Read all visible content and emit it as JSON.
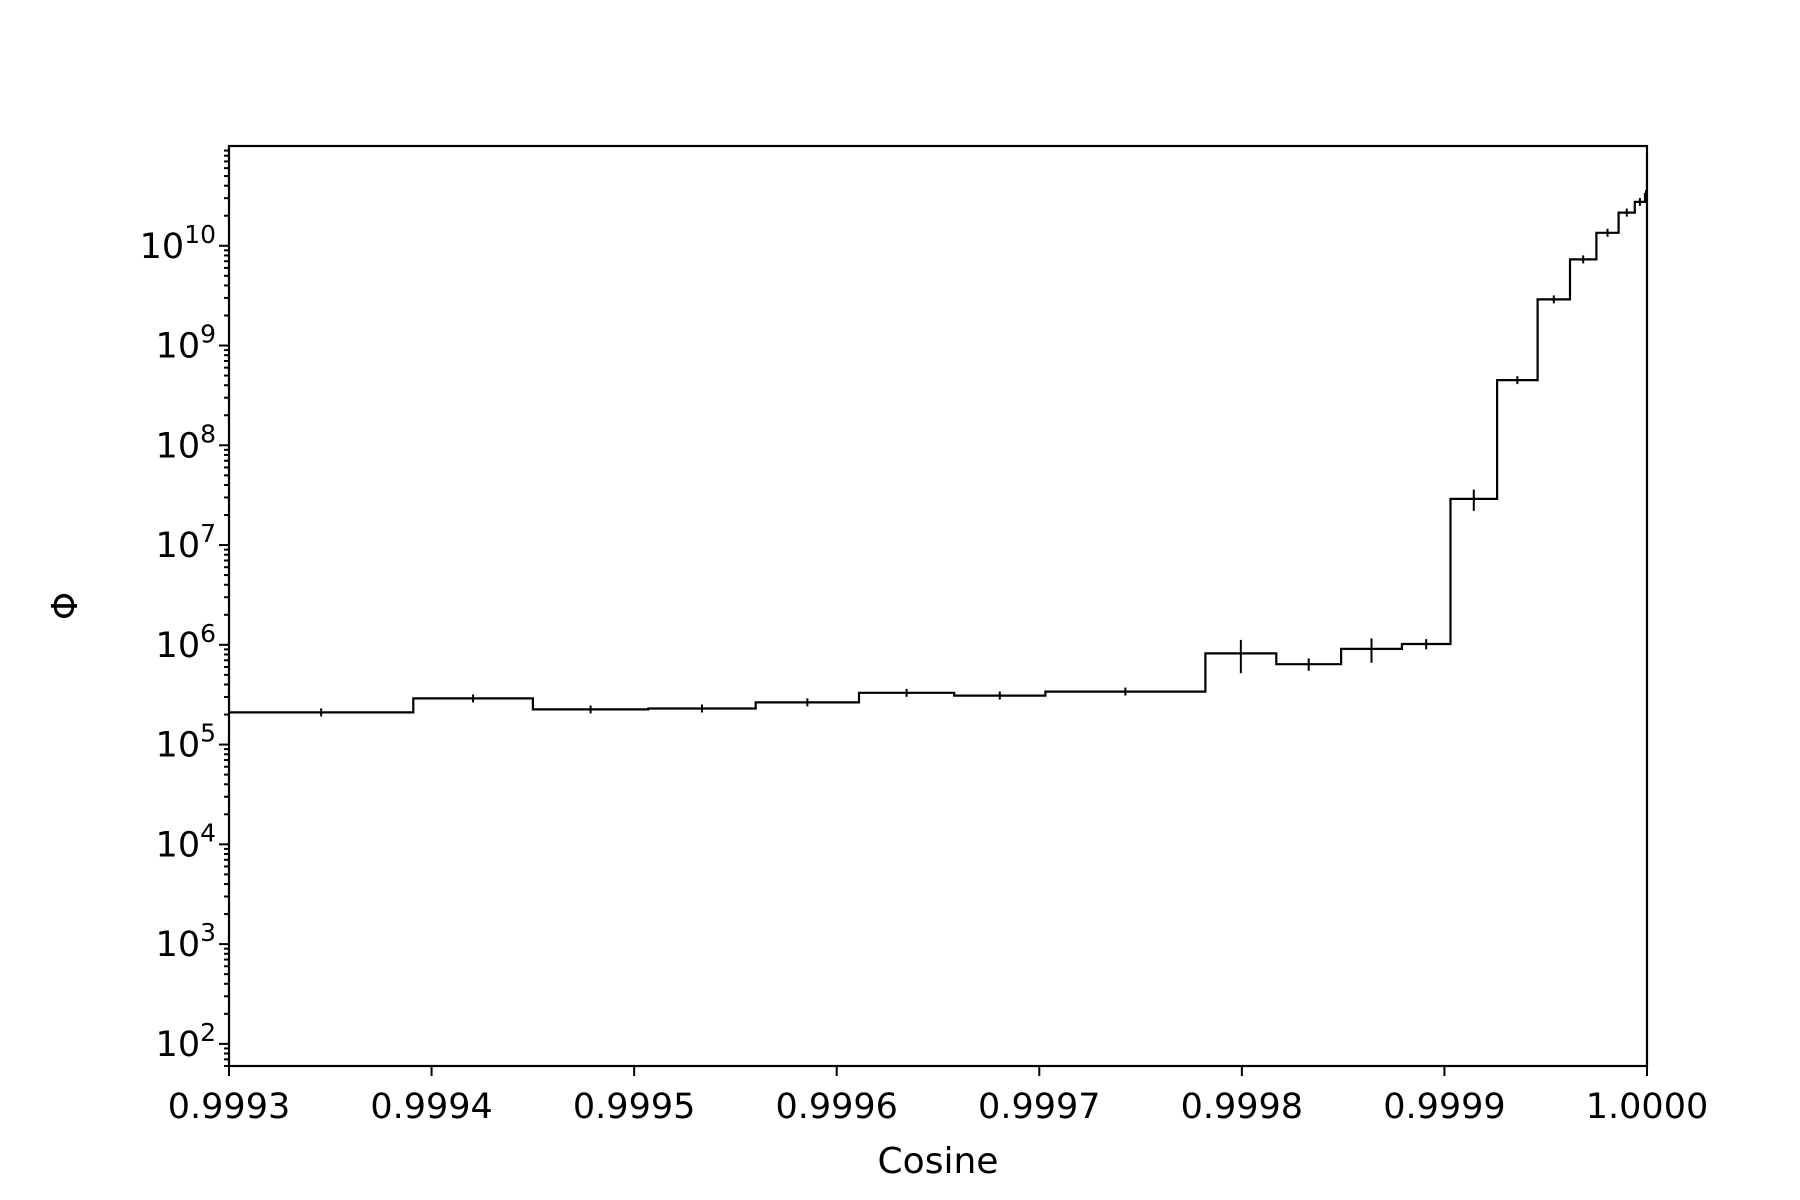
{
  "chart_data": {
    "type": "line",
    "style": "step histogram with error bars",
    "title": "",
    "xlabel": "Cosine",
    "ylabel": "Φ",
    "xlim": [
      0.9993,
      1.0
    ],
    "ylim": [
      60,
      100000000000.0
    ],
    "yscale": "log",
    "grid": false,
    "legend": "none",
    "x_ticks": [
      "0.9993",
      "0.9994",
      "0.9995",
      "0.9996",
      "0.9997",
      "0.9998",
      "0.9999",
      "1.0000"
    ],
    "y_ticks": [
      {
        "base": "10",
        "exp": "2"
      },
      {
        "base": "10",
        "exp": "3"
      },
      {
        "base": "10",
        "exp": "4"
      },
      {
        "base": "10",
        "exp": "5"
      },
      {
        "base": "10",
        "exp": "6"
      },
      {
        "base": "10",
        "exp": "7"
      },
      {
        "base": "10",
        "exp": "8"
      },
      {
        "base": "10",
        "exp": "9"
      },
      {
        "base": "10",
        "exp": "10"
      }
    ],
    "bins": [
      {
        "x0": 0.9993,
        "x1": 0.999391,
        "y": 210000,
        "err": 0
      },
      {
        "x0": 0.999391,
        "x1": 0.99945,
        "y": 290000,
        "err": 20000
      },
      {
        "x0": 0.99945,
        "x1": 0.999507,
        "y": 225000,
        "err": 10000
      },
      {
        "x0": 0.999507,
        "x1": 0.99956,
        "y": 230000,
        "err": 10000
      },
      {
        "x0": 0.99956,
        "x1": 0.999611,
        "y": 265000,
        "err": 20000
      },
      {
        "x0": 0.999611,
        "x1": 0.999658,
        "y": 330000,
        "err": 25000
      },
      {
        "x0": 0.999658,
        "x1": 0.999703,
        "y": 310000,
        "err": 20000
      },
      {
        "x0": 0.999703,
        "x1": 0.999782,
        "y": 340000,
        "err": 20000
      },
      {
        "x0": 0.999782,
        "x1": 0.999817,
        "y": 820000,
        "err": 300000
      },
      {
        "x0": 0.999817,
        "x1": 0.999849,
        "y": 640000,
        "err": 90000
      },
      {
        "x0": 0.999849,
        "x1": 0.999879,
        "y": 910000,
        "err": 250000
      },
      {
        "x0": 0.999879,
        "x1": 0.999903,
        "y": 1020000,
        "err": 120000
      },
      {
        "x0": 0.999903,
        "x1": 0.999926,
        "y": 29000000,
        "err": 7000000
      },
      {
        "x0": 0.999926,
        "x1": 0.999946,
        "y": 450000000,
        "err": 40000000
      },
      {
        "x0": 0.999946,
        "x1": 0.999962,
        "y": 2900000000,
        "err": 150000000
      },
      {
        "x0": 0.999962,
        "x1": 0.999975,
        "y": 7300000000,
        "err": 300000000
      },
      {
        "x0": 0.999975,
        "x1": 0.999986,
        "y": 13500000000,
        "err": 500000000
      },
      {
        "x0": 0.999986,
        "x1": 0.999994,
        "y": 21500000000,
        "err": 800000000
      },
      {
        "x0": 0.999994,
        "x1": 0.999999,
        "y": 27500000000,
        "err": 1500000000
      },
      {
        "x0": 0.999999,
        "x1": 1.0,
        "y": 33000000000,
        "err": 3000000000
      }
    ]
  }
}
